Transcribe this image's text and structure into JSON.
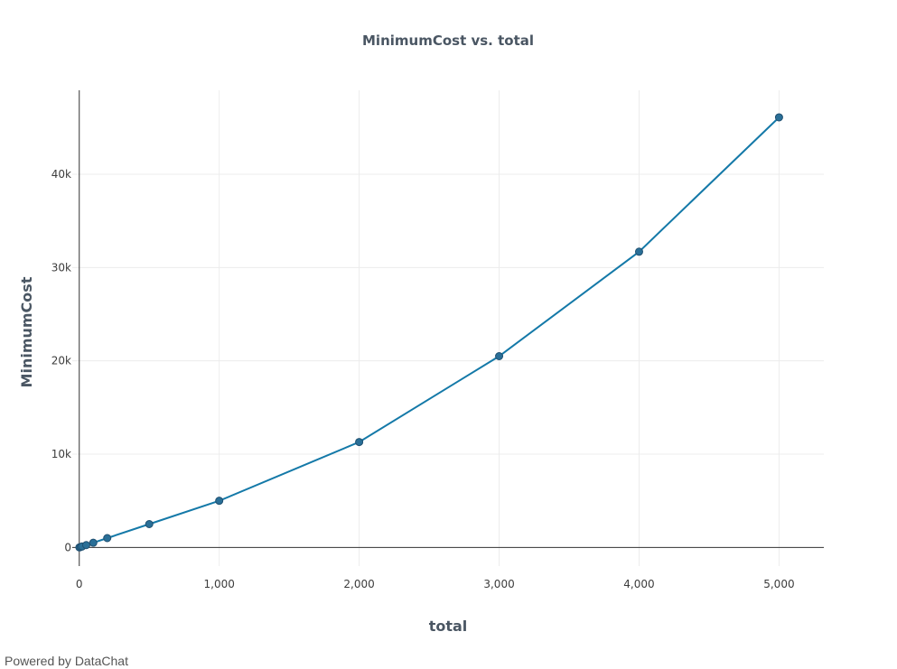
{
  "footer": {
    "text": "Powered by DataChat"
  },
  "colors": {
    "series": "#1479a8",
    "marker": "#2a6f97"
  },
  "chart_data": {
    "type": "line",
    "title": "MinimumCost vs. total",
    "xlabel": "total",
    "ylabel": "MinimumCost",
    "xlim": [
      -50,
      5320
    ],
    "ylim": [
      -2000,
      49000
    ],
    "xticks": [
      0,
      1000,
      2000,
      3000,
      4000,
      5000
    ],
    "xtick_labels": [
      "0",
      "1,000",
      "2,000",
      "3,000",
      "4,000",
      "5,000"
    ],
    "yticks": [
      0,
      10000,
      20000,
      30000,
      40000
    ],
    "ytick_labels": [
      "0",
      "10k",
      "20k",
      "30k",
      "40k"
    ],
    "grid": true,
    "series": [
      {
        "x": [
          1,
          10,
          20,
          50,
          100,
          200,
          500,
          1000,
          2000,
          3000,
          4000,
          5000
        ],
        "y": [
          5,
          50,
          100,
          250,
          500,
          1000,
          2500,
          5000,
          11300,
          20500,
          31700,
          46100
        ]
      }
    ]
  }
}
